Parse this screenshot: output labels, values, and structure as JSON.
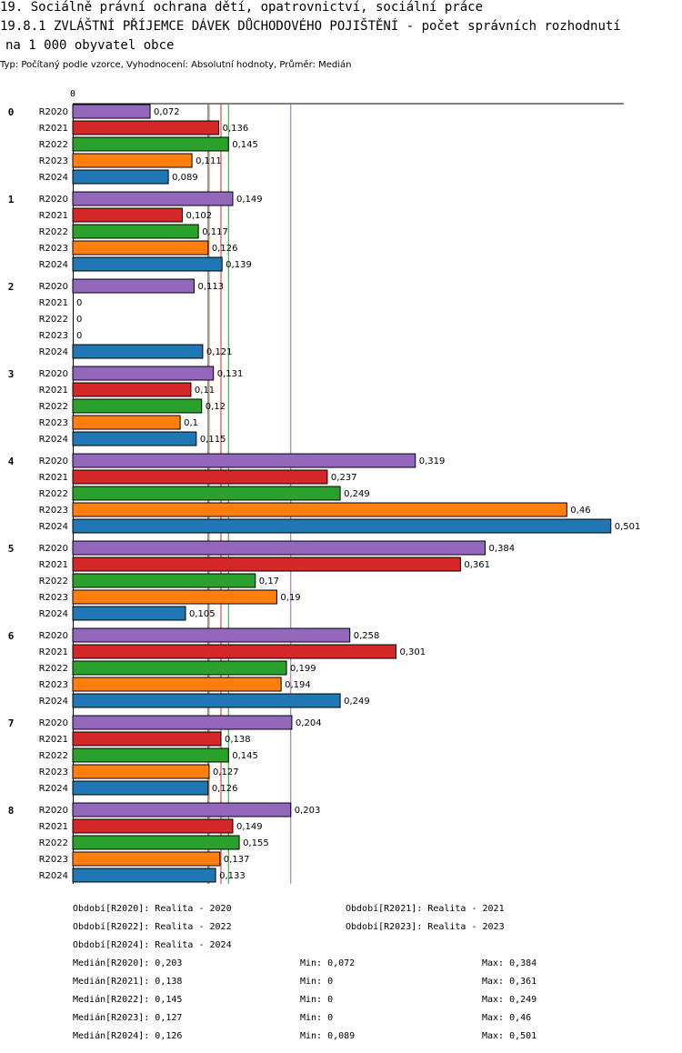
{
  "header": {
    "line1": "19. Sociálně právní ochrana dětí, opatrovnictví, sociální práce",
    "line2": "19.8.1 ZVLÁŠTNÍ PŘÍJEMCE DÁVEK DŮCHODOVÉHO POJIŠTĚNÍ - počet správních rozhodnutí",
    "line3": "na  1 000 obyvatel obce",
    "subtitle": "Typ: Počítaný podle vzorce, Vyhodnocení: Absolutní hodnoty, Průměr: Medián"
  },
  "chart_data": {
    "type": "bar",
    "orientation": "horizontal",
    "axis_zero_label": "0",
    "categories": [
      "0",
      "1",
      "2",
      "3",
      "4",
      "5",
      "6",
      "7",
      "8"
    ],
    "series": [
      {
        "name": "R2020",
        "color": "#9467bd",
        "values": [
          0.072,
          0.149,
          0.113,
          0.131,
          0.319,
          0.384,
          0.258,
          0.204,
          0.203
        ],
        "labels": [
          "0,072",
          "0,149",
          "0,113",
          "0,131",
          "0,319",
          "0,384",
          "0,258",
          "0,204",
          "0,203"
        ]
      },
      {
        "name": "R2021",
        "color": "#d62728",
        "values": [
          0.136,
          0.102,
          0,
          0.11,
          0.237,
          0.361,
          0.301,
          0.138,
          0.149
        ],
        "labels": [
          "0,136",
          "0,102",
          "0",
          "0,11",
          "0,237",
          "0,361",
          "0,301",
          "0,138",
          "0,149"
        ]
      },
      {
        "name": "R2022",
        "color": "#2ca02c",
        "values": [
          0.145,
          0.117,
          0,
          0.12,
          0.249,
          0.17,
          0.199,
          0.145,
          0.155
        ],
        "labels": [
          "0,145",
          "0,117",
          "0",
          "0,12",
          "0,249",
          "0,17",
          "0,199",
          "0,145",
          "0,155"
        ]
      },
      {
        "name": "R2023",
        "color": "#ff7f0e",
        "values": [
          0.111,
          0.126,
          0,
          0.1,
          0.46,
          0.19,
          0.194,
          0.127,
          0.137
        ],
        "labels": [
          "0,111",
          "0,126",
          "0",
          "0,1",
          "0,46",
          "0,19",
          "0,194",
          "0,127",
          "0,137"
        ]
      },
      {
        "name": "R2024",
        "color": "#1f77b4",
        "values": [
          0.089,
          0.139,
          0.121,
          0.115,
          0.501,
          0.105,
          0.249,
          0.126,
          0.133
        ],
        "labels": [
          "0,089",
          "0,139",
          "0,121",
          "0,115",
          "0,501",
          "0,105",
          "0,249",
          "0,126",
          "0,133"
        ]
      }
    ],
    "median_lines": [
      {
        "series": "R2020",
        "value": 0.203,
        "color": "#9467bd"
      },
      {
        "series": "R2021",
        "value": 0.138,
        "color": "#d62728"
      },
      {
        "series": "R2022",
        "value": 0.145,
        "color": "#2ca02c"
      },
      {
        "series": "R2023",
        "value": 0.127,
        "color": "#ff7f0e"
      },
      {
        "series": "R2024",
        "value": 0.126,
        "color": "#1f77b4"
      }
    ],
    "xlim": [
      0,
      0.508
    ]
  },
  "legend": {
    "periods": [
      "Období[R2020]: Realita - 2020",
      "Období[R2021]: Realita - 2021",
      "Období[R2022]: Realita - 2022",
      "Období[R2023]: Realita - 2023",
      "Období[R2024]: Realita - 2024"
    ],
    "stats": [
      {
        "median": "Medián[R2020]: 0,203",
        "min": "Min: 0,072",
        "max": "Max: 0,384"
      },
      {
        "median": "Medián[R2021]: 0,138",
        "min": "Min: 0",
        "max": "Max: 0,361"
      },
      {
        "median": "Medián[R2022]: 0,145",
        "min": "Min: 0",
        "max": "Max: 0,249"
      },
      {
        "median": "Medián[R2023]: 0,127",
        "min": "Min: 0",
        "max": "Max: 0,46"
      },
      {
        "median": "Medián[R2024]: 0,126",
        "min": "Min: 0,089",
        "max": "Max: 0,501"
      }
    ]
  }
}
